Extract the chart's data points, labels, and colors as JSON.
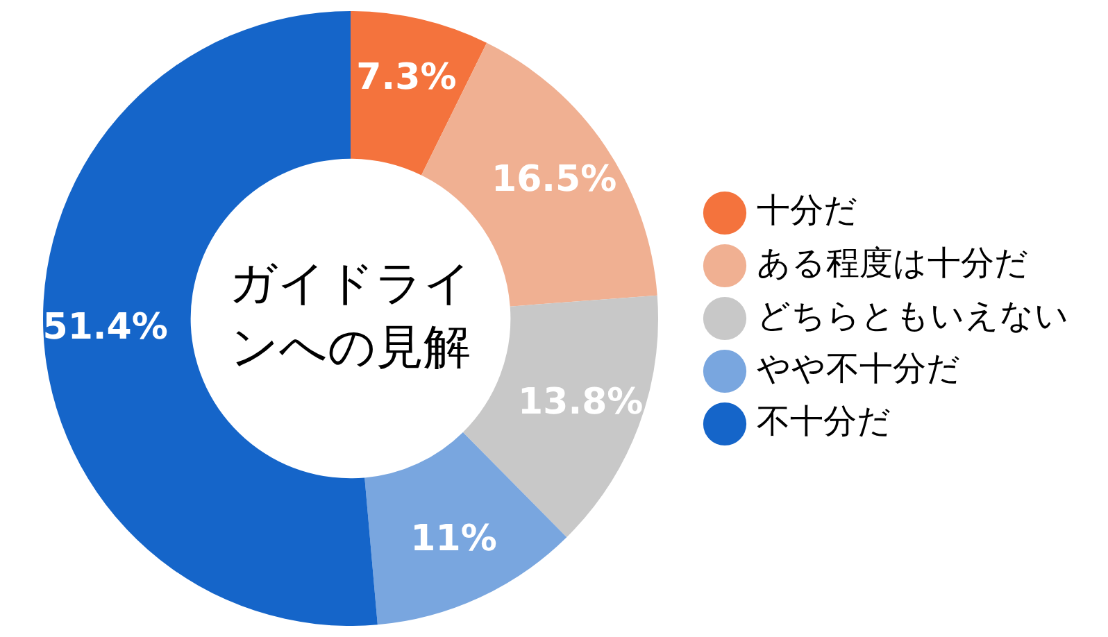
{
  "chart_data": {
    "type": "donut",
    "title": "ガイドラインへの見解",
    "categories": [
      "十分だ",
      "ある程度は十分だ",
      "どちらともいえない",
      "やや不十分だ",
      "不十分だ"
    ],
    "values": [
      7.3,
      16.5,
      13.8,
      11,
      51.4
    ],
    "colors": [
      "#f4733d",
      "#f0b092",
      "#c8c8c8",
      "#79a6df",
      "#1565c9"
    ],
    "value_labels": [
      "7.3%",
      "16.5%",
      "13.8%",
      "11%",
      "51.4%"
    ],
    "legend": "right"
  }
}
